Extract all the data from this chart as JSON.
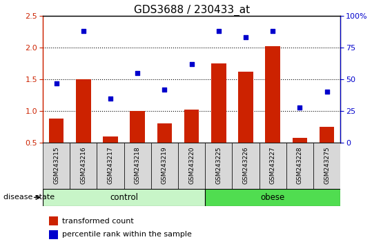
{
  "title": "GDS3688 / 230433_at",
  "samples": [
    "GSM243215",
    "GSM243216",
    "GSM243217",
    "GSM243218",
    "GSM243219",
    "GSM243220",
    "GSM243225",
    "GSM243226",
    "GSM243227",
    "GSM243228",
    "GSM243275"
  ],
  "transformed_count": [
    0.88,
    1.5,
    0.6,
    1.0,
    0.8,
    1.02,
    1.75,
    1.62,
    2.02,
    0.58,
    0.75
  ],
  "percentile_rank": [
    47,
    88,
    35,
    55,
    42,
    62,
    88,
    83,
    88,
    28,
    40
  ],
  "groups": [
    {
      "label": "control",
      "indices": [
        0,
        1,
        2,
        3,
        4,
        5
      ],
      "color_light": "#c8f5c8",
      "color_dark": "#50dd50"
    },
    {
      "label": "obese",
      "indices": [
        6,
        7,
        8,
        9,
        10
      ],
      "color_light": "#50dd50",
      "color_dark": "#00bb00"
    }
  ],
  "ylim_left": [
    0.5,
    2.5
  ],
  "ylim_right": [
    0,
    100
  ],
  "yticks_left": [
    0.5,
    1.0,
    1.5,
    2.0,
    2.5
  ],
  "yticks_right": [
    0,
    25,
    50,
    75,
    100
  ],
  "bar_color": "#cc2200",
  "scatter_color": "#0000cc",
  "bar_width": 0.55,
  "grid_yticks": [
    1.0,
    1.5,
    2.0
  ],
  "legend_labels": [
    "transformed count",
    "percentile rank within the sample"
  ],
  "disease_state_label": "disease state",
  "title_fontsize": 11,
  "tick_fontsize": 8,
  "sample_fontsize": 6.5
}
